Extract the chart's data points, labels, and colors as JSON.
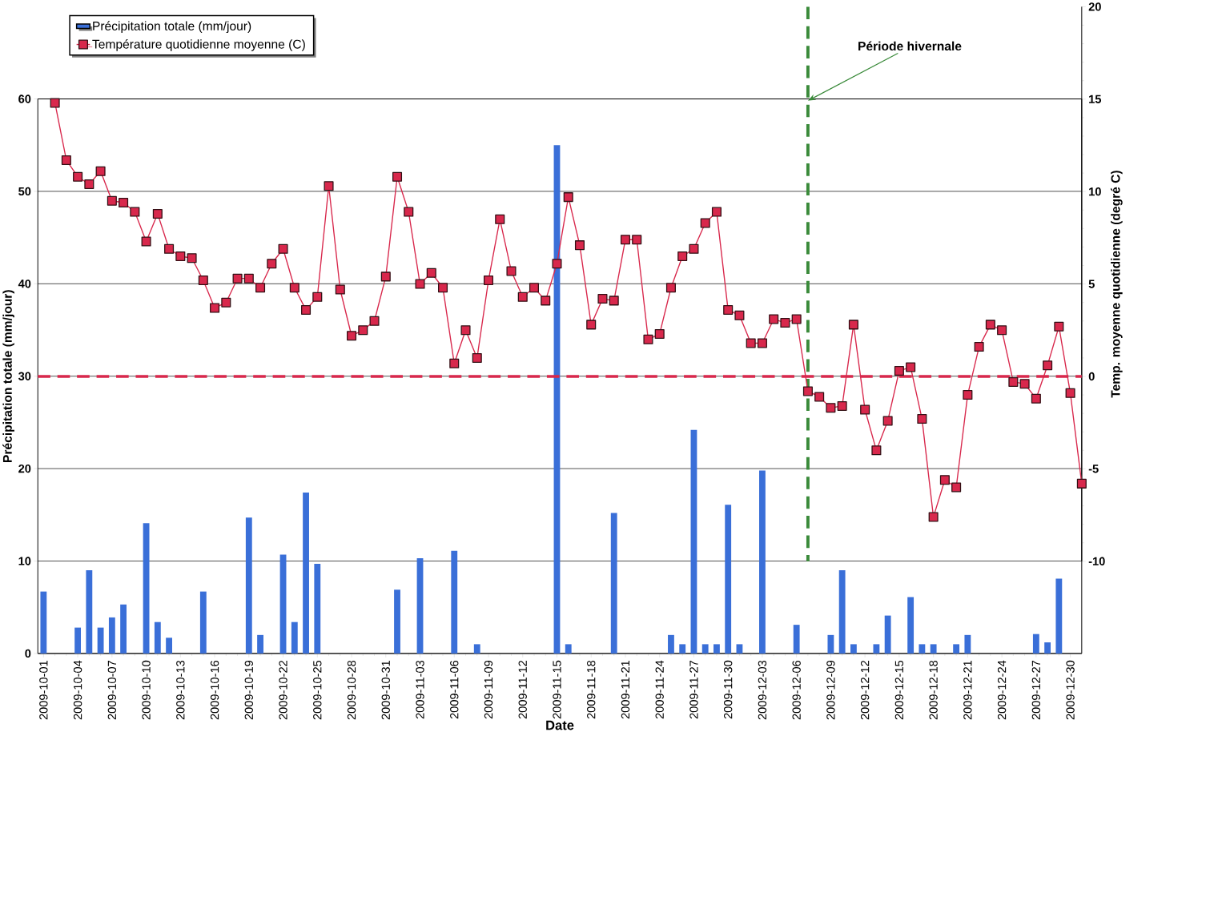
{
  "chart_data": {
    "type": "bar",
    "xlabel": "Date",
    "ylabel": "Précipitation totale (mm/jour)",
    "y2label": "Temp. moyenne quotidienne (degré C)",
    "xlim": [
      "2009-09-30T12:00",
      "2009-12-31T00:00"
    ],
    "xticks": [
      "2009-10-01",
      "2009-10-04",
      "2009-10-07",
      "2009-10-10",
      "2009-10-13",
      "2009-10-16",
      "2009-10-19",
      "2009-10-22",
      "2009-10-25",
      "2009-10-28",
      "2009-10-31",
      "2009-11-03",
      "2009-11-06",
      "2009-11-09",
      "2009-11-12",
      "2009-11-15",
      "2009-11-18",
      "2009-11-21",
      "2009-11-24",
      "2009-11-27",
      "2009-11-30",
      "2009-12-03",
      "2009-12-06",
      "2009-12-09",
      "2009-12-12",
      "2009-12-15",
      "2009-12-18",
      "2009-12-21",
      "2009-12-24",
      "2009-12-27",
      "2009-12-30"
    ],
    "ylim": [
      0,
      60
    ],
    "yticks": [
      0,
      10,
      20,
      30,
      40,
      50,
      60
    ],
    "y2lim": [
      -10,
      20
    ],
    "y2ticks": [
      -10,
      -5,
      0,
      5,
      10,
      15,
      20
    ],
    "grid": "y",
    "legend": "top left",
    "marker": "square",
    "line_style": "solid",
    "ref_lines": [
      {
        "axis": "y2",
        "value": 0,
        "color": "#d8284c",
        "line_style": "dashed"
      },
      {
        "axis": "x",
        "value": "2009-12-07",
        "label": "Période  hivernale",
        "color": "#3a8a3a",
        "line_style": "dashed"
      }
    ],
    "series": [
      {
        "name": "Précipitation totale (mm/jour)",
        "color": "#3a6fd8",
        "x": [
          "2009-10-01",
          "2009-10-04",
          "2009-10-05",
          "2009-10-06",
          "2009-10-07",
          "2009-10-08",
          "2009-10-10",
          "2009-10-11",
          "2009-10-12",
          "2009-10-15",
          "2009-10-19",
          "2009-10-20",
          "2009-10-22",
          "2009-10-23",
          "2009-10-24",
          "2009-10-25",
          "2009-11-01",
          "2009-11-03",
          "2009-11-06",
          "2009-11-08",
          "2009-11-15",
          "2009-11-16",
          "2009-11-20",
          "2009-11-25",
          "2009-11-26",
          "2009-11-27",
          "2009-11-28",
          "2009-11-29",
          "2009-11-30",
          "2009-12-01",
          "2009-12-03",
          "2009-12-06",
          "2009-12-09",
          "2009-12-10",
          "2009-12-11",
          "2009-12-13",
          "2009-12-14",
          "2009-12-16",
          "2009-12-17",
          "2009-12-18",
          "2009-12-20",
          "2009-12-21",
          "2009-12-27",
          "2009-12-28",
          "2009-12-29"
        ],
        "values": [
          6.7,
          2.8,
          9.0,
          2.8,
          3.9,
          5.3,
          14.1,
          3.4,
          1.7,
          6.7,
          14.7,
          2.0,
          10.7,
          3.4,
          17.4,
          9.7,
          6.9,
          10.3,
          11.1,
          1.0,
          55,
          1.0,
          15.2,
          2.0,
          1.0,
          24.2,
          1.0,
          1.0,
          16.1,
          1.0,
          19.8,
          3.1,
          2.0,
          9.0,
          1.0,
          1.0,
          4.1,
          6.1,
          1.0,
          1.0,
          1.0,
          2.0,
          2.1,
          1.2,
          8.1
        ]
      },
      {
        "name": "Température quotidienne moyenne (C)",
        "type": "line",
        "axis": "y2",
        "color": "#d8284c",
        "x": [
          "2009-10-02",
          "2009-10-03",
          "2009-10-04",
          "2009-10-05",
          "2009-10-06",
          "2009-10-07",
          "2009-10-08",
          "2009-10-09",
          "2009-10-10",
          "2009-10-11",
          "2009-10-12",
          "2009-10-13",
          "2009-10-14",
          "2009-10-15",
          "2009-10-16",
          "2009-10-17",
          "2009-10-18",
          "2009-10-19",
          "2009-10-20",
          "2009-10-21",
          "2009-10-22",
          "2009-10-23",
          "2009-10-24",
          "2009-10-25",
          "2009-10-26",
          "2009-10-27",
          "2009-10-28",
          "2009-10-29",
          "2009-10-30",
          "2009-10-31",
          "2009-11-01",
          "2009-11-02",
          "2009-11-03",
          "2009-11-04",
          "2009-11-05",
          "2009-11-06",
          "2009-11-07",
          "2009-11-08",
          "2009-11-09",
          "2009-11-10",
          "2009-11-11",
          "2009-11-12",
          "2009-11-13",
          "2009-11-14",
          "2009-11-15",
          "2009-11-16",
          "2009-11-17",
          "2009-11-18",
          "2009-11-19",
          "2009-11-20",
          "2009-11-21",
          "2009-11-22",
          "2009-11-23",
          "2009-11-24",
          "2009-11-25",
          "2009-11-26",
          "2009-11-27",
          "2009-11-28",
          "2009-11-29",
          "2009-11-30",
          "2009-12-01",
          "2009-12-02",
          "2009-12-03",
          "2009-12-04",
          "2009-12-05",
          "2009-12-06",
          "2009-12-07",
          "2009-12-08",
          "2009-12-09",
          "2009-12-10",
          "2009-12-11",
          "2009-12-12",
          "2009-12-13",
          "2009-12-14",
          "2009-12-15",
          "2009-12-16",
          "2009-12-17",
          "2009-12-18",
          "2009-12-19",
          "2009-12-20",
          "2009-12-21",
          "2009-12-22",
          "2009-12-23",
          "2009-12-24",
          "2009-12-25",
          "2009-12-26",
          "2009-12-27",
          "2009-12-28",
          "2009-12-29",
          "2009-12-30",
          "2009-12-31"
        ],
        "values": [
          14.8,
          11.7,
          10.8,
          10.4,
          11.1,
          9.5,
          9.4,
          8.9,
          7.3,
          8.8,
          6.9,
          6.5,
          6.4,
          5.2,
          3.7,
          4.0,
          5.3,
          5.3,
          4.8,
          6.1,
          6.9,
          4.8,
          3.6,
          4.3,
          10.3,
          4.7,
          2.2,
          2.5,
          3.0,
          5.4,
          10.8,
          8.9,
          5.0,
          5.6,
          4.8,
          0.7,
          2.5,
          1.0,
          5.2,
          8.5,
          5.7,
          4.3,
          4.8,
          4.1,
          6.1,
          9.7,
          7.1,
          2.8,
          4.2,
          4.1,
          7.4,
          7.4,
          2.0,
          2.3,
          4.8,
          6.5,
          6.9,
          8.3,
          8.9,
          3.6,
          3.3,
          1.8,
          1.8,
          3.1,
          2.9,
          3.1,
          -0.8,
          -1.1,
          -1.7,
          -1.6,
          2.8,
          -1.8,
          -4.0,
          -2.4,
          0.3,
          0.5,
          -2.3,
          -7.6,
          -5.6,
          -6.0,
          -1.0,
          1.6,
          2.8,
          2.5,
          -0.3,
          -0.4,
          -1.2,
          0.6,
          2.7,
          -0.9,
          -5.8
        ]
      }
    ]
  }
}
